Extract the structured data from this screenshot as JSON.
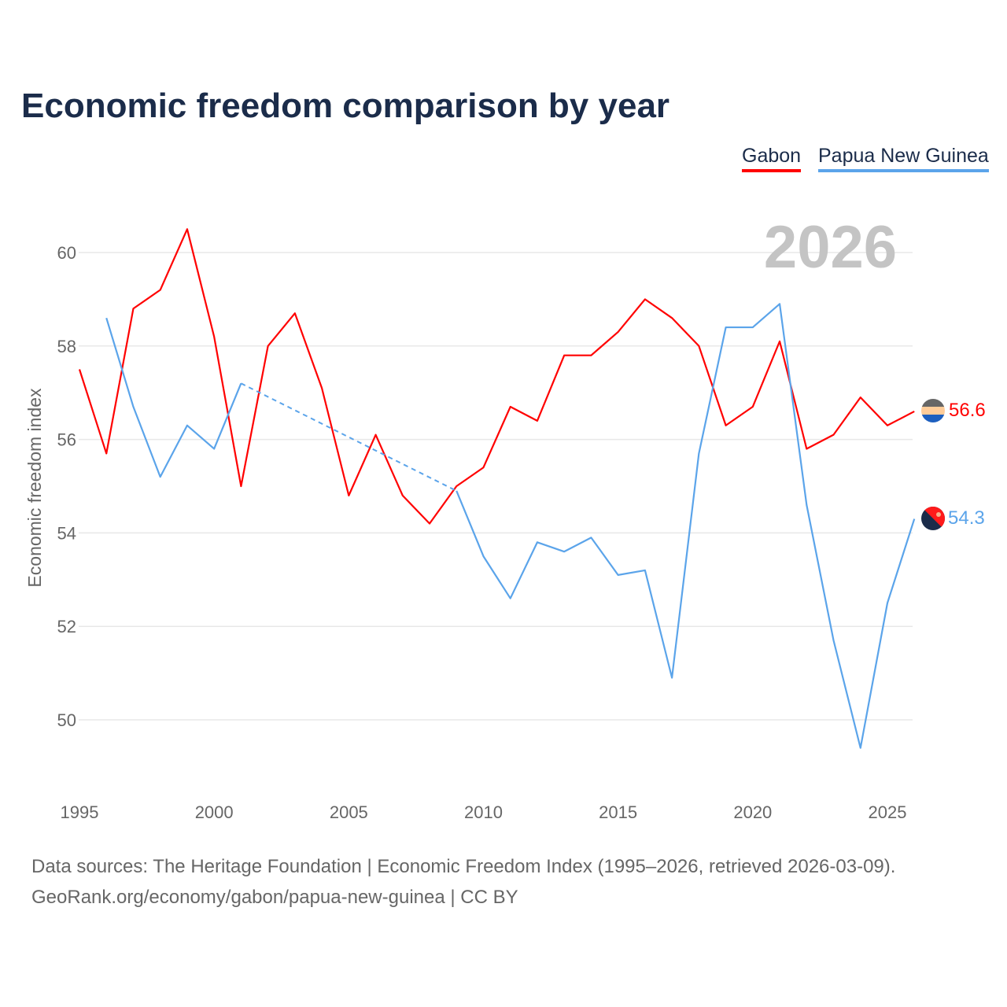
{
  "chart_data": {
    "type": "line",
    "title": "Economic freedom comparison by year",
    "xlabel": "",
    "ylabel": "Economic freedom index",
    "xlim": [
      1995,
      2026
    ],
    "ylim": [
      48.8,
      61
    ],
    "yticks": [
      50,
      52,
      54,
      56,
      58,
      60
    ],
    "xticks": [
      1995,
      2000,
      2005,
      2010,
      2015,
      2020,
      2025
    ],
    "grid": true,
    "legend_placement": "top-right",
    "year_watermark": "2026",
    "x": [
      1995,
      1996,
      1997,
      1998,
      1999,
      2000,
      2001,
      2002,
      2003,
      2004,
      2005,
      2006,
      2007,
      2008,
      2009,
      2010,
      2011,
      2012,
      2013,
      2014,
      2015,
      2016,
      2017,
      2018,
      2019,
      2020,
      2021,
      2022,
      2023,
      2024,
      2025,
      2026
    ],
    "series": [
      {
        "name": "Gabon",
        "color": "#ff0000",
        "end_label": "56.6",
        "values": [
          57.5,
          55.7,
          58.8,
          59.2,
          60.5,
          58.2,
          55.0,
          58.0,
          58.7,
          57.1,
          54.8,
          56.1,
          54.8,
          54.2,
          55.0,
          55.4,
          56.7,
          56.4,
          57.8,
          57.8,
          58.3,
          59.0,
          58.6,
          58.0,
          56.3,
          56.7,
          58.1,
          55.8,
          56.1,
          56.9,
          56.3,
          56.6
        ]
      },
      {
        "name": "Papua New Guinea",
        "color": "#5ba4ea",
        "end_label": "54.3",
        "values": [
          null,
          58.6,
          56.7,
          55.2,
          56.3,
          55.8,
          57.2,
          null,
          null,
          null,
          null,
          null,
          null,
          null,
          54.9,
          53.5,
          52.6,
          53.8,
          53.6,
          53.9,
          53.1,
          53.2,
          50.9,
          55.7,
          58.4,
          58.4,
          58.9,
          54.6,
          51.7,
          49.4,
          52.5,
          54.3
        ]
      }
    ]
  },
  "footer": {
    "line1": "Data sources: The Heritage Foundation | Economic Freedom Index (1995–2026, retrieved 2026-03-09).",
    "line2": "GeoRank.org/economy/gabon/papua-new-guinea | CC BY"
  }
}
